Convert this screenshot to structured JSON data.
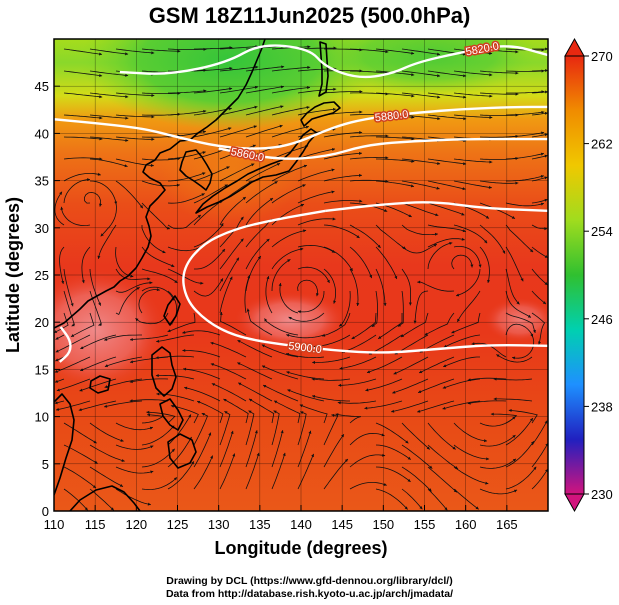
{
  "title": "GSM 18Z11Jun2025 (500.0hPa)",
  "chart_data": {
    "type": "map",
    "xlabel": "Longitude (degrees)",
    "ylabel": "Latitude  (degrees)",
    "xlim": [
      110,
      170
    ],
    "ylim": [
      0,
      50
    ],
    "x_ticks": [
      110,
      115,
      120,
      125,
      130,
      135,
      140,
      145,
      150,
      155,
      160,
      165
    ],
    "y_ticks": [
      0,
      5,
      10,
      15,
      20,
      25,
      30,
      35,
      40,
      45
    ],
    "colorbar": {
      "min": 230,
      "max": 270,
      "tick_labels": [
        "270",
        "262",
        "254",
        "246",
        "238",
        "230"
      ],
      "colors": [
        "#d2147d",
        "#2020c0",
        "#1e90ff",
        "#00d0b0",
        "#30c030",
        "#a0dc1e",
        "#f0c800",
        "#f08c00",
        "#e82810"
      ]
    },
    "contours": [
      {
        "label": "5820.0",
        "points": [
          [
            118,
            46.5
          ],
          [
            124,
            46.2
          ],
          [
            131,
            47.5
          ],
          [
            135,
            49.5
          ],
          [
            141,
            49
          ],
          [
            143,
            47
          ],
          [
            147,
            45.8
          ],
          [
            151,
            46.3
          ],
          [
            154,
            47.5
          ],
          [
            159,
            48.5
          ],
          [
            165,
            49.5
          ],
          [
            170,
            48.3
          ]
        ]
      },
      {
        "label": "5880.0",
        "points": [
          [
            110,
            41.5
          ],
          [
            116,
            41
          ],
          [
            121,
            40.5
          ],
          [
            125,
            39.6
          ],
          [
            130,
            38.6
          ],
          [
            135,
            38.3
          ],
          [
            139,
            38.8
          ],
          [
            144,
            40.7
          ],
          [
            148,
            41.6
          ],
          [
            154,
            42.2
          ],
          [
            160,
            42.6
          ],
          [
            166,
            42.8
          ],
          [
            170,
            42.8
          ]
        ]
      },
      {
        "label": "5860.0",
        "points": [
          [
            130,
            38.4
          ],
          [
            137,
            37.2
          ],
          [
            143,
            37.5
          ],
          [
            148,
            38.8
          ],
          [
            154,
            39.2
          ],
          [
            160,
            39.4
          ],
          [
            165,
            39.4
          ],
          [
            170,
            39.4
          ]
        ]
      },
      {
        "label": "5900.0",
        "points": [
          [
            143,
            31.8
          ],
          [
            137,
            30.9
          ],
          [
            132,
            29.9
          ],
          [
            128,
            28.3
          ],
          [
            125.5,
            25.5
          ],
          [
            126,
            22.4
          ],
          [
            128.5,
            20.1
          ],
          [
            132,
            18.5
          ],
          [
            137,
            17.7
          ],
          [
            144,
            17.0
          ],
          [
            150,
            16.7
          ],
          [
            157,
            17.2
          ],
          [
            163,
            17.6
          ],
          [
            170,
            17.5
          ]
        ]
      },
      {
        "label": "",
        "points": [
          [
            143,
            31.8
          ],
          [
            150,
            32.5
          ],
          [
            156,
            32.8
          ],
          [
            162,
            32.1
          ],
          [
            167,
            31.9
          ],
          [
            170,
            31.8
          ]
        ]
      },
      {
        "label": "",
        "points": [
          [
            110.8,
            19.5
          ],
          [
            112,
            18.1
          ],
          [
            112,
            16.8
          ],
          [
            110.7,
            15.8
          ]
        ]
      }
    ]
  },
  "credits": [
    "Drawing by DCL (https://www.gfd-dennou.org/library/dcl/)",
    "Data from http://database.rish.kyoto-u.ac.jp/arch/jmadata/"
  ]
}
